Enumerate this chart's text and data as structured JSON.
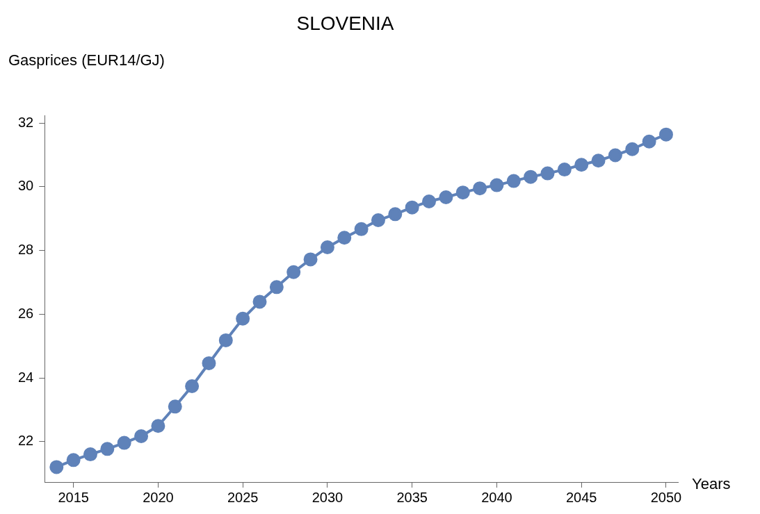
{
  "chart_data": {
    "type": "line",
    "title": "SLOVENIA",
    "ylabel": "Gasprices (EUR14/GJ)",
    "xlabel": "Years",
    "x": [
      2014,
      2015,
      2016,
      2017,
      2018,
      2019,
      2020,
      2021,
      2022,
      2023,
      2024,
      2025,
      2026,
      2027,
      2028,
      2029,
      2030,
      2031,
      2032,
      2033,
      2034,
      2035,
      2036,
      2037,
      2038,
      2039,
      2040,
      2041,
      2042,
      2043,
      2044,
      2045,
      2046,
      2047,
      2048,
      2049,
      2050
    ],
    "series": [
      {
        "color": "#5f82b9",
        "values": [
          21.2,
          21.42,
          21.6,
          21.77,
          21.96,
          22.17,
          22.49,
          23.1,
          23.74,
          24.46,
          25.18,
          25.86,
          26.39,
          26.85,
          27.32,
          27.72,
          28.1,
          28.4,
          28.67,
          28.95,
          29.14,
          29.35,
          29.54,
          29.67,
          29.82,
          29.95,
          30.05,
          30.18,
          30.31,
          30.42,
          30.54,
          30.69,
          30.82,
          30.99,
          31.18,
          31.42,
          31.64
        ]
      }
    ],
    "xlim": [
      2013.3,
      2050.7
    ],
    "xticks": [
      2015,
      2020,
      2025,
      2030,
      2035,
      2040,
      2045,
      2050
    ],
    "ylim": [
      20.73,
      32.23
    ],
    "yticks": [
      22,
      24,
      26,
      28,
      30,
      32
    ],
    "grid": false,
    "legend": false,
    "marker": "circle",
    "line_style": "solid"
  }
}
